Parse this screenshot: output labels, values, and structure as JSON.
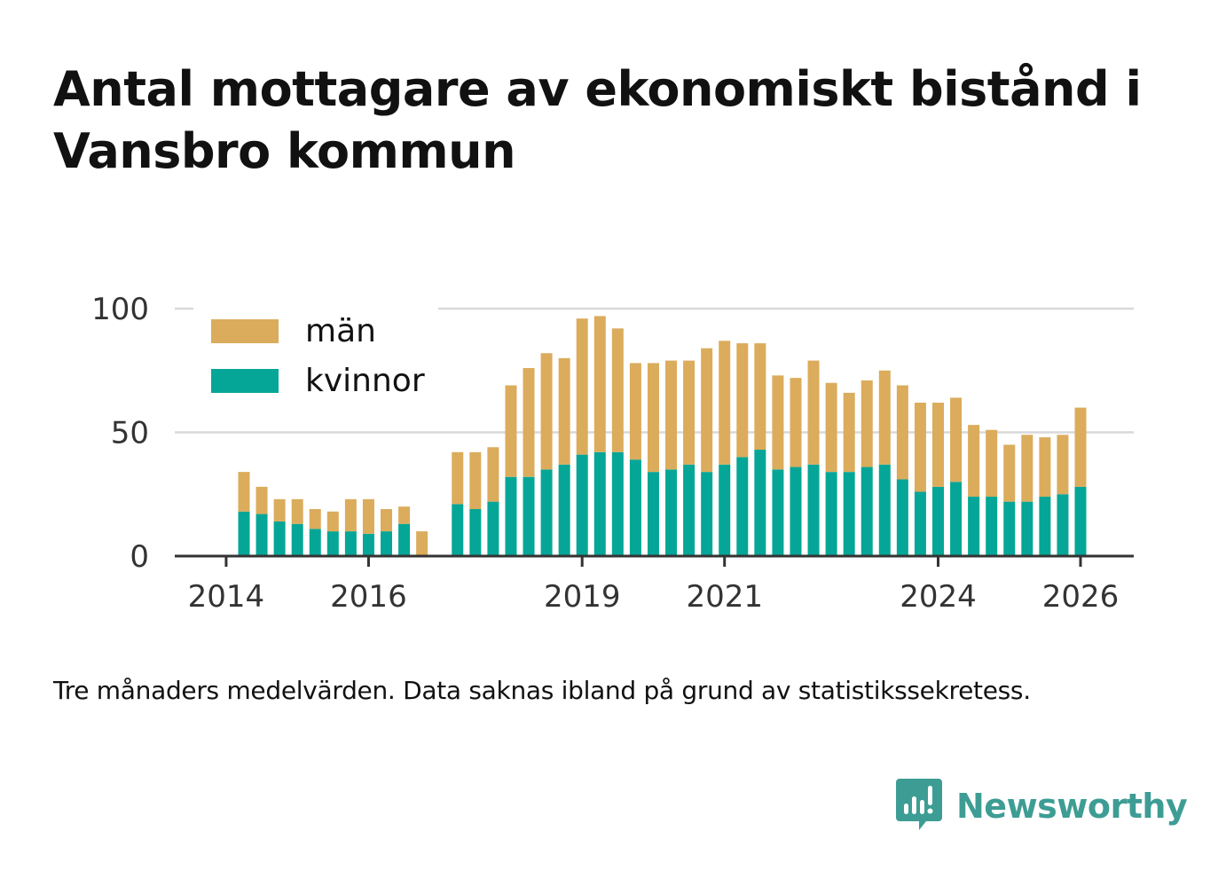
{
  "title": "Antal mottagare av ekonomiskt bistånd i Vansbro kommun",
  "footnote": "Tre månaders medelvärden. Data saknas ibland på grund av statistikssekretess.",
  "brand": {
    "name": "Newsworthy",
    "logo": "bar-chart-speech-bubble-icon",
    "color": "#3d9d94"
  },
  "colors": {
    "man": "#dbac5c",
    "kvinnor": "#05a697",
    "grid": "#d9d9d9",
    "axis": "#333333"
  },
  "chart_data": {
    "type": "bar",
    "stacked": true,
    "title": "Antal mottagare av ekonomiskt bistånd i Vansbro kommun",
    "xlabel": "",
    "ylabel": "",
    "ylim": [
      0,
      105
    ],
    "yticks": [
      0,
      50,
      100
    ],
    "xticks": [
      "2014",
      "2016",
      "2019",
      "2021",
      "2024",
      "2026"
    ],
    "grid": true,
    "legend_position": "top-left",
    "x": [
      "2014-04",
      "2014-07",
      "2014-10",
      "2015-01",
      "2015-04",
      "2015-07",
      "2015-10",
      "2016-01",
      "2016-04",
      "2016-07",
      "2016-10",
      "2017-01",
      "2017-04",
      "2017-07",
      "2017-10",
      "2018-01",
      "2018-04",
      "2018-07",
      "2018-10",
      "2019-01",
      "2019-04",
      "2019-07",
      "2019-10",
      "2020-01",
      "2020-04",
      "2020-07",
      "2020-10",
      "2021-01",
      "2021-04",
      "2021-07",
      "2021-10",
      "2022-01",
      "2022-04",
      "2022-07",
      "2022-10",
      "2023-01",
      "2023-04",
      "2023-07",
      "2023-10",
      "2024-01",
      "2024-04",
      "2024-07",
      "2024-10",
      "2025-01",
      "2025-04",
      "2025-07",
      "2025-10",
      "2026-01"
    ],
    "series": [
      {
        "name": "kvinnor",
        "color": "#05a697",
        "values": [
          18,
          17,
          14,
          13,
          11,
          10,
          10,
          9,
          10,
          13,
          null,
          null,
          21,
          19,
          22,
          32,
          32,
          35,
          37,
          41,
          42,
          42,
          39,
          34,
          35,
          37,
          34,
          37,
          40,
          43,
          35,
          36,
          37,
          34,
          34,
          36,
          37,
          31,
          26,
          28,
          30,
          24,
          24,
          22,
          22,
          24,
          25,
          28
        ]
      },
      {
        "name": "män",
        "color": "#dbac5c",
        "values": [
          16,
          11,
          9,
          10,
          8,
          8,
          13,
          14,
          9,
          7,
          10,
          null,
          21,
          23,
          22,
          37,
          44,
          47,
          43,
          55,
          55,
          50,
          39,
          44,
          44,
          42,
          50,
          50,
          46,
          43,
          38,
          36,
          42,
          36,
          32,
          35,
          38,
          38,
          36,
          34,
          34,
          29,
          27,
          23,
          27,
          24,
          24,
          32
        ]
      }
    ]
  }
}
